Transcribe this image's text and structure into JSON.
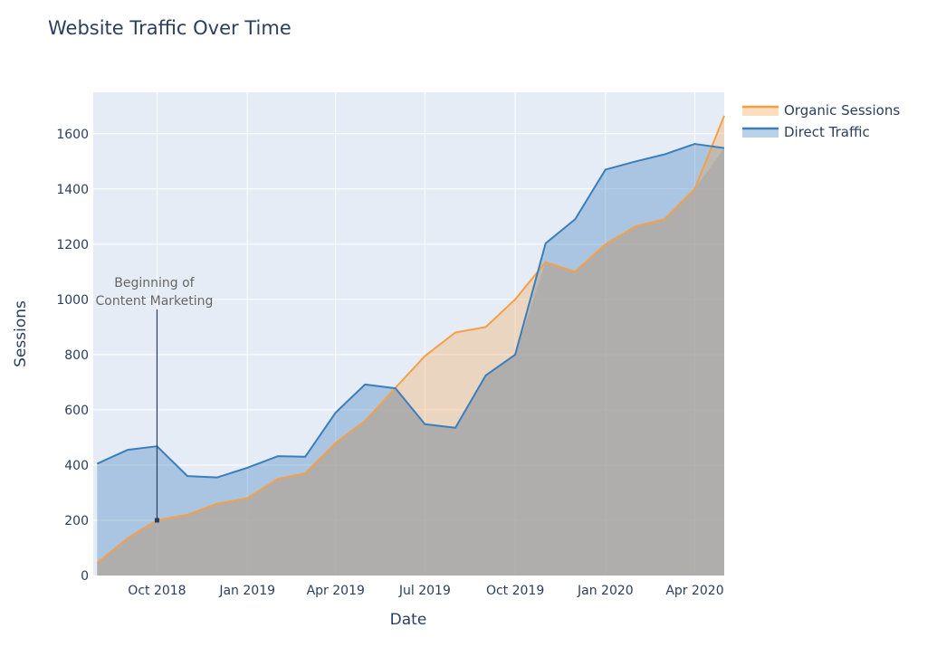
{
  "chart_data": {
    "type": "area",
    "title": "Website Traffic Over Time",
    "xlabel": "Date",
    "ylabel": "Sessions",
    "x": [
      "2018-08",
      "2018-09",
      "2018-10",
      "2018-11",
      "2018-12",
      "2019-01",
      "2019-02",
      "2019-03",
      "2019-04",
      "2019-05",
      "2019-06",
      "2019-07",
      "2019-08",
      "2019-09",
      "2019-10",
      "2019-11",
      "2019-12",
      "2020-01",
      "2020-02",
      "2020-03",
      "2020-04",
      "2020-05"
    ],
    "x_range": [
      "2018-07-28",
      "2020-05-01"
    ],
    "ylim": [
      0,
      1750
    ],
    "x_ticks": [
      {
        "date": "2018-10-01",
        "label": "Oct 2018"
      },
      {
        "date": "2019-01-01",
        "label": "Jan 2019"
      },
      {
        "date": "2019-04-01",
        "label": "Apr 2019"
      },
      {
        "date": "2019-07-01",
        "label": "Jul 2019"
      },
      {
        "date": "2019-10-01",
        "label": "Oct 2019"
      },
      {
        "date": "2020-01-01",
        "label": "Jan 2020"
      },
      {
        "date": "2020-04-01",
        "label": "Apr 2020"
      }
    ],
    "y_ticks": [
      0,
      200,
      400,
      600,
      800,
      1000,
      1200,
      1400,
      1600
    ],
    "grid": true,
    "legend_position": "top-right",
    "series": [
      {
        "name": "Organic Sessions",
        "color": "#f5a046",
        "fill": "tonexty",
        "values": [
          45,
          135,
          200,
          220,
          260,
          280,
          350,
          370,
          480,
          560,
          680,
          795,
          880,
          900,
          1000,
          1135,
          1100,
          1200,
          1265,
          1290,
          1400,
          1665
        ]
      },
      {
        "name": "Direct Traffic",
        "color": "#3a7fbb",
        "fill": "tozeroy",
        "values": [
          405,
          455,
          468,
          360,
          355,
          390,
          432,
          430,
          590,
          692,
          678,
          548,
          535,
          725,
          800,
          1203,
          1290,
          1470,
          1500,
          1525,
          1563,
          1548
        ]
      }
    ],
    "annotations": [
      {
        "text_lines": [
          "Beginning of",
          "Content Marketing"
        ],
        "x": "2018-10-01",
        "y": 200
      }
    ]
  }
}
